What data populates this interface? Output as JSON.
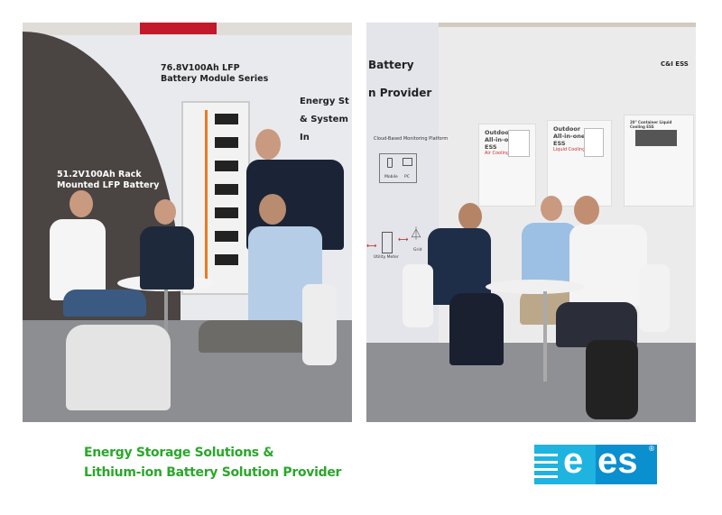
{
  "left_photo": {
    "sign_module": [
      "76.8V100Ah LFP",
      "Battery Module Series"
    ],
    "sign_rack": [
      "51.2V100Ah Rack",
      "Mounted LFP Battery"
    ],
    "sign_partial": [
      "Energy St",
      "& System In"
    ]
  },
  "right_photo": {
    "wall_text": [
      "Battery",
      "n Provider"
    ],
    "cloud_label": "Cloud-Based Monitoring Platform",
    "mobile_label": "Mobile",
    "pc_label": "PC",
    "grid_label": "Grid",
    "meter_label": "Utility Meter",
    "section_label": "C&I ESS",
    "posters": [
      {
        "title": [
          "Outdoor",
          "All-in-one",
          "ESS"
        ],
        "subtitle": "Air Cooling"
      },
      {
        "title": [
          "Outdoor",
          "All-in-one",
          "ESS"
        ],
        "subtitle": "Liquid Cooling"
      },
      {
        "title": [
          "20\" Container Liquid Cooling ESS"
        ],
        "subtitle": ""
      }
    ]
  },
  "caption": {
    "line1": "Energy Storage Solutions &",
    "line2": "Lithium-ion Battery Solution Provider"
  },
  "logo": {
    "text_e": "e",
    "text_es": "es",
    "mark": "®",
    "colors": {
      "light": "#1fb3e0",
      "dark": "#0a8fcf"
    }
  },
  "colors": {
    "caption": "#2aa82a"
  }
}
